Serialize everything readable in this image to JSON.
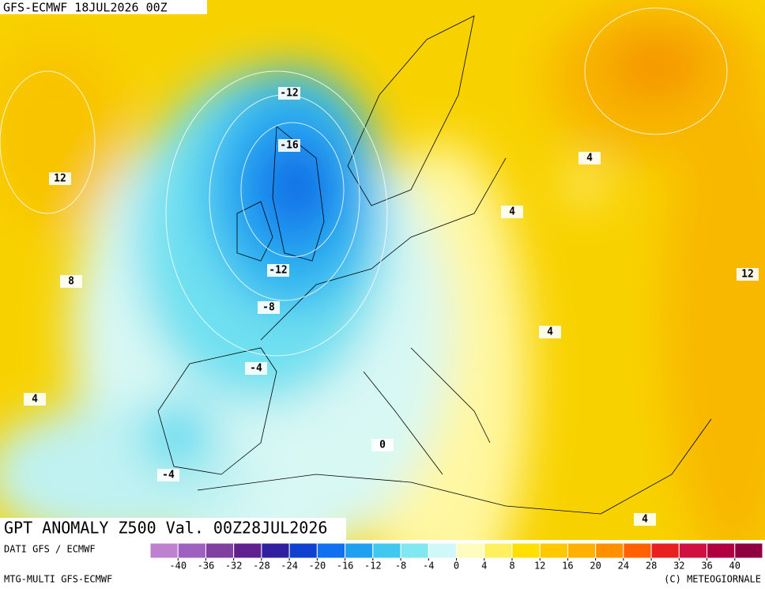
{
  "header": {
    "run": "GFS-ECMWF 18JUL2026 00Z"
  },
  "title": "GPT ANOMALY Z500 Val. 00Z28JUL2026",
  "footer": {
    "source": "DATI GFS / ECMWF",
    "model": "MTG-MULTI GFS-ECMWF",
    "copyright": "(C) METEOGIORNALE"
  },
  "contour_labels": [
    -12,
    -16,
    12,
    8,
    -12,
    -8,
    -4,
    4,
    4,
    4,
    12,
    4,
    0,
    -4,
    4
  ],
  "colorbar": {
    "colors": [
      "#c080d0",
      "#a060c0",
      "#8040a0",
      "#602090",
      "#3020a0",
      "#1040d0",
      "#1070f0",
      "#20a0f0",
      "#40c8f0",
      "#80e8f0",
      "#d0f8f8",
      "#fffcc0",
      "#fff060",
      "#ffe000",
      "#ffc800",
      "#ffb000",
      "#ff9000",
      "#ff6000",
      "#e82020",
      "#d01040",
      "#b00040",
      "#900040"
    ],
    "ticks": [
      -40,
      -36,
      -32,
      -28,
      -24,
      -20,
      -16,
      -12,
      -8,
      -4,
      0,
      4,
      8,
      12,
      16,
      20,
      24,
      28,
      32,
      36,
      40
    ]
  }
}
